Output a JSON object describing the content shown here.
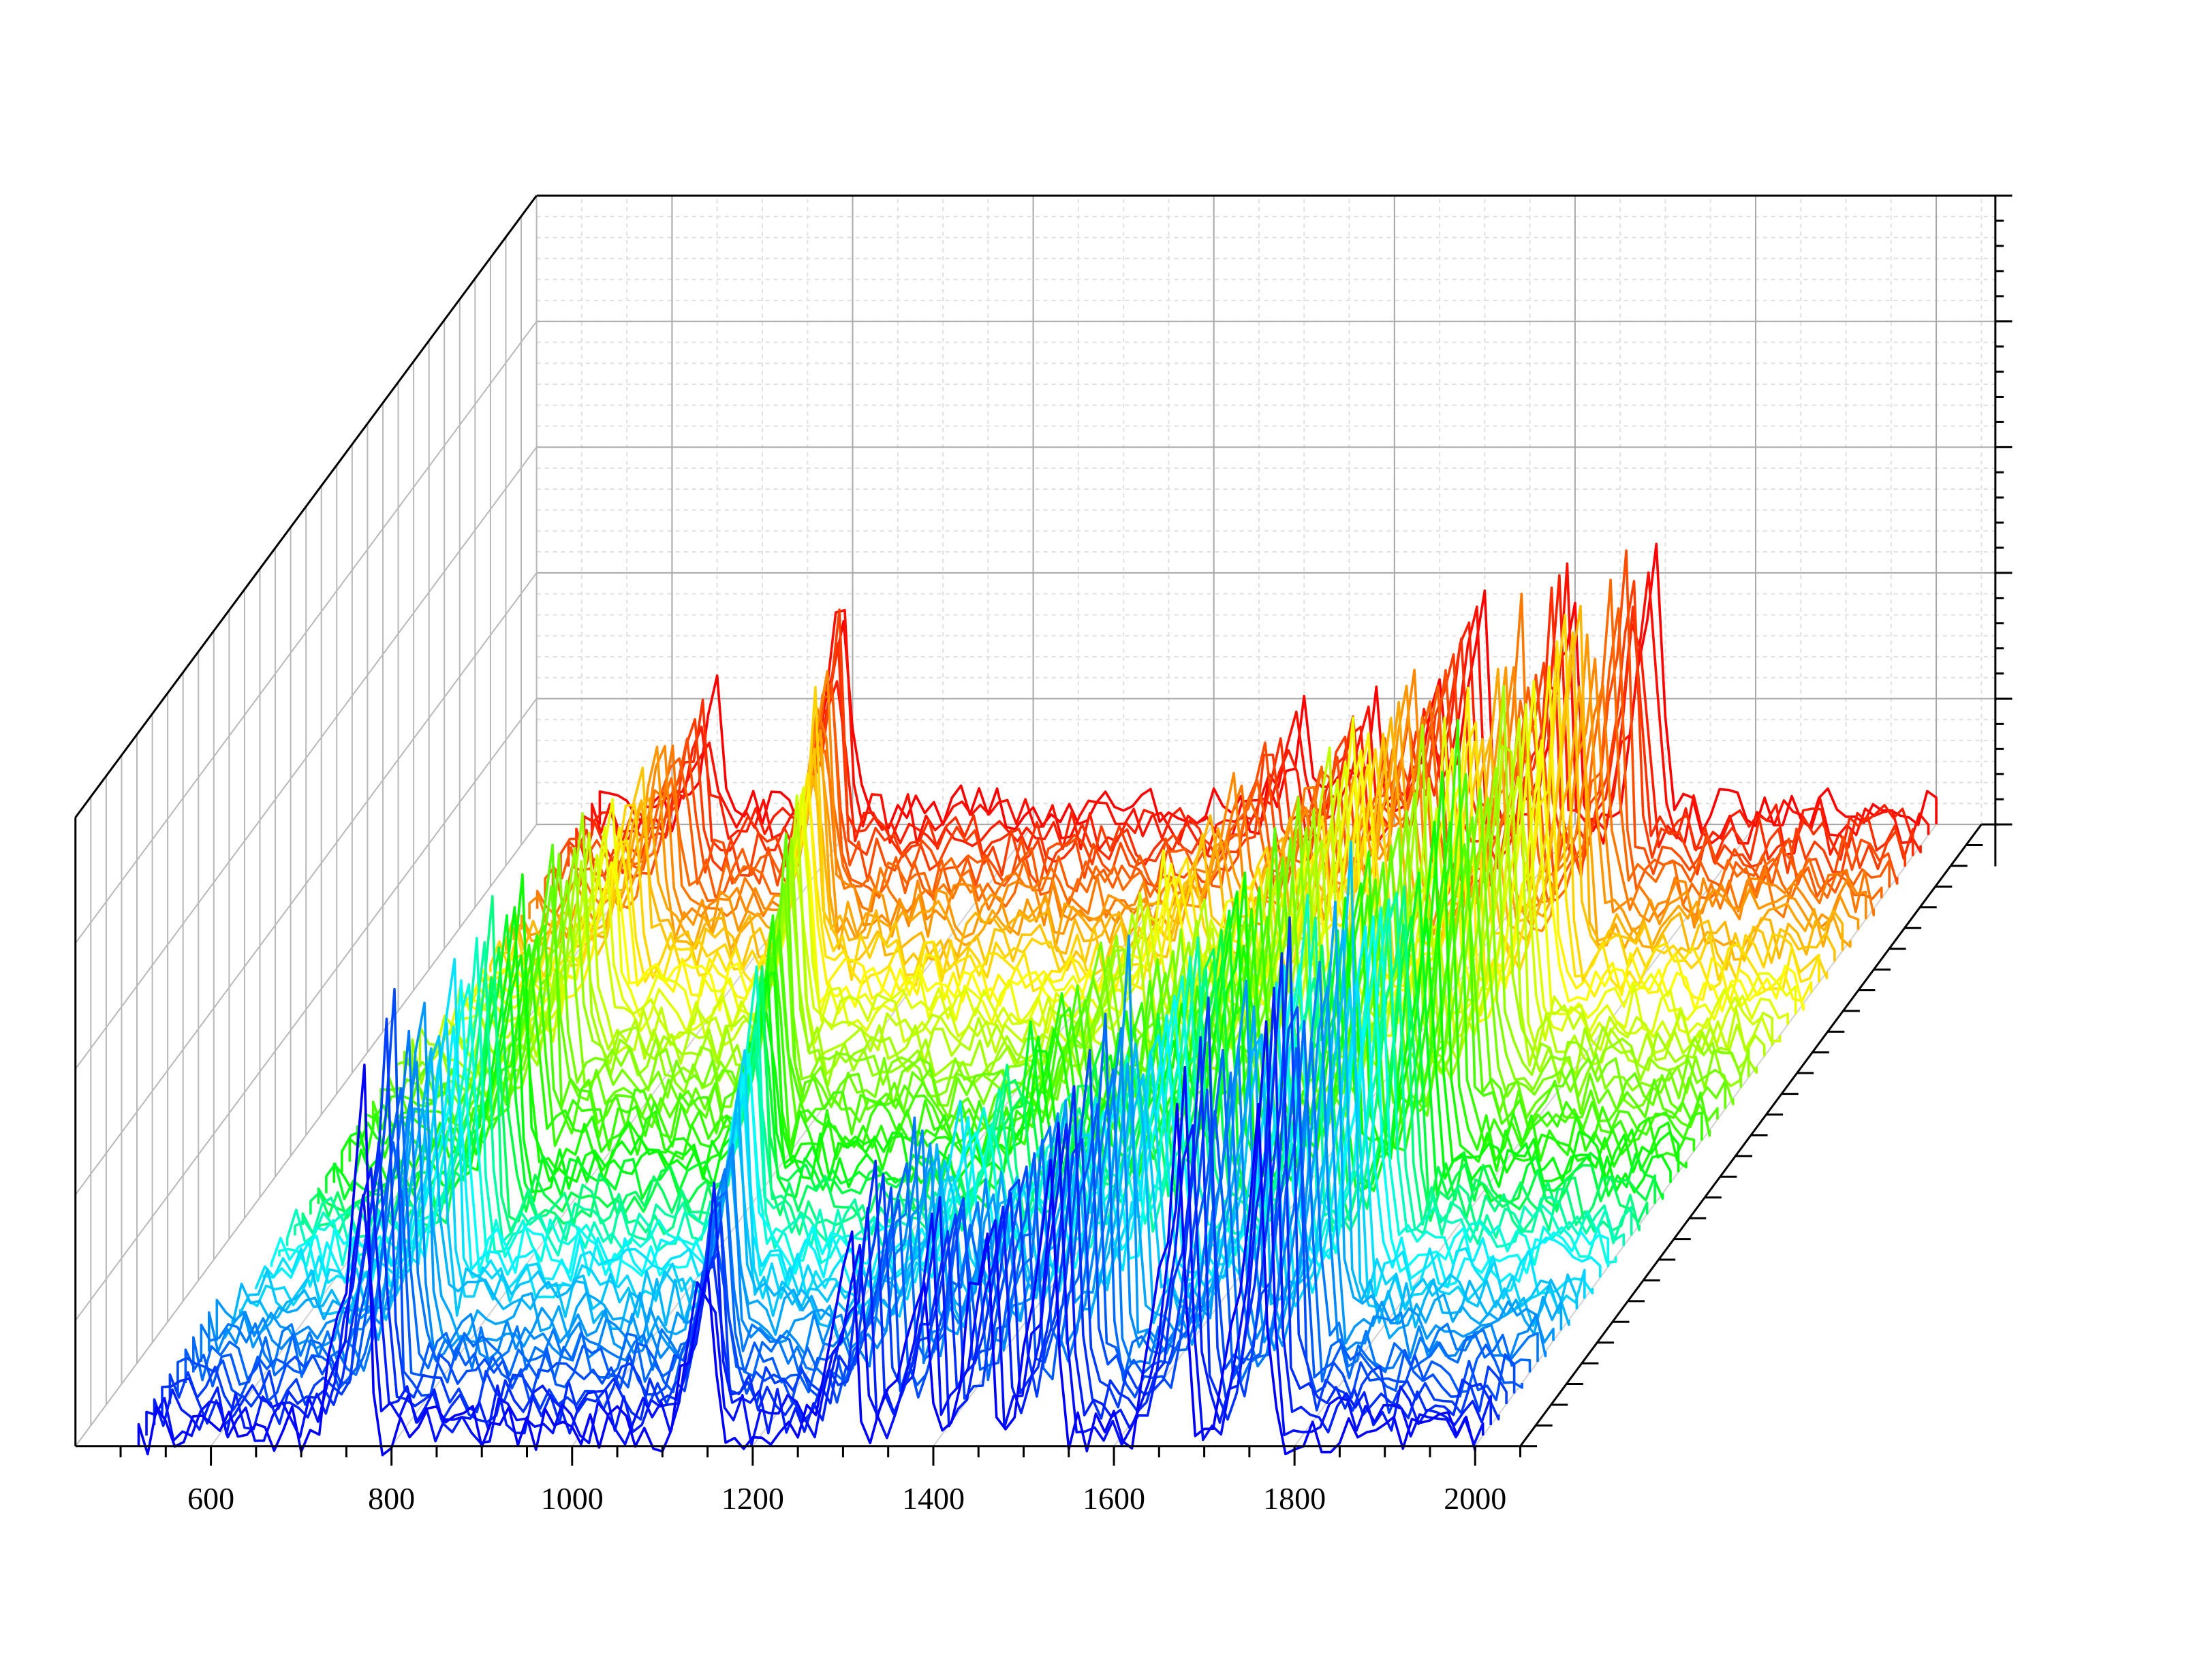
{
  "chart_data": {
    "type": "line",
    "subtype": "3d-waterfall",
    "title": "",
    "xlabel": "",
    "ylabel": "",
    "zlabel": "",
    "xlim": [
      450,
      2050
    ],
    "x_ticks": [
      600,
      800,
      1000,
      1200,
      1400,
      1600,
      1800,
      2000
    ],
    "x_tick_labels": [
      "600",
      "800",
      "1000",
      "1200",
      "1400",
      "1600",
      "1800",
      "2000"
    ],
    "x_start": 520,
    "x_end": 2000,
    "x_step": 10,
    "series_count": 60,
    "baseline_noise": 0.05,
    "color_map": [
      "#0000ff",
      "#0080ff",
      "#00ffff",
      "#00ff00",
      "#80ff00",
      "#ffff00",
      "#ff8000",
      "#ff0000"
    ],
    "grid": true,
    "legend": "none",
    "peaks_front": [
      {
        "center": 765,
        "height": 0.62,
        "width": 9
      },
      {
        "center": 1150,
        "height": 0.35,
        "width": 9
      },
      {
        "center": 1305,
        "height": 0.35,
        "width": 8
      },
      {
        "center": 1385,
        "height": 0.3,
        "width": 8
      },
      {
        "center": 1455,
        "height": 0.4,
        "width": 9
      },
      {
        "center": 1530,
        "height": 0.58,
        "width": 9
      },
      {
        "center": 1670,
        "height": 0.6,
        "width": 9
      },
      {
        "center": 1760,
        "height": 0.72,
        "width": 9
      }
    ],
    "peaks_back": [
      {
        "center": 650,
        "height": 0.22,
        "width": 10
      },
      {
        "center": 790,
        "height": 0.4,
        "width": 9
      },
      {
        "center": 1300,
        "height": 0.18,
        "width": 12
      },
      {
        "center": 1375,
        "height": 0.17,
        "width": 10
      },
      {
        "center": 1450,
        "height": 0.22,
        "width": 10
      },
      {
        "center": 1495,
        "height": 0.39,
        "width": 9
      },
      {
        "center": 1595,
        "height": 0.4,
        "width": 9
      },
      {
        "center": 1690,
        "height": 0.5,
        "width": 9
      }
    ]
  }
}
